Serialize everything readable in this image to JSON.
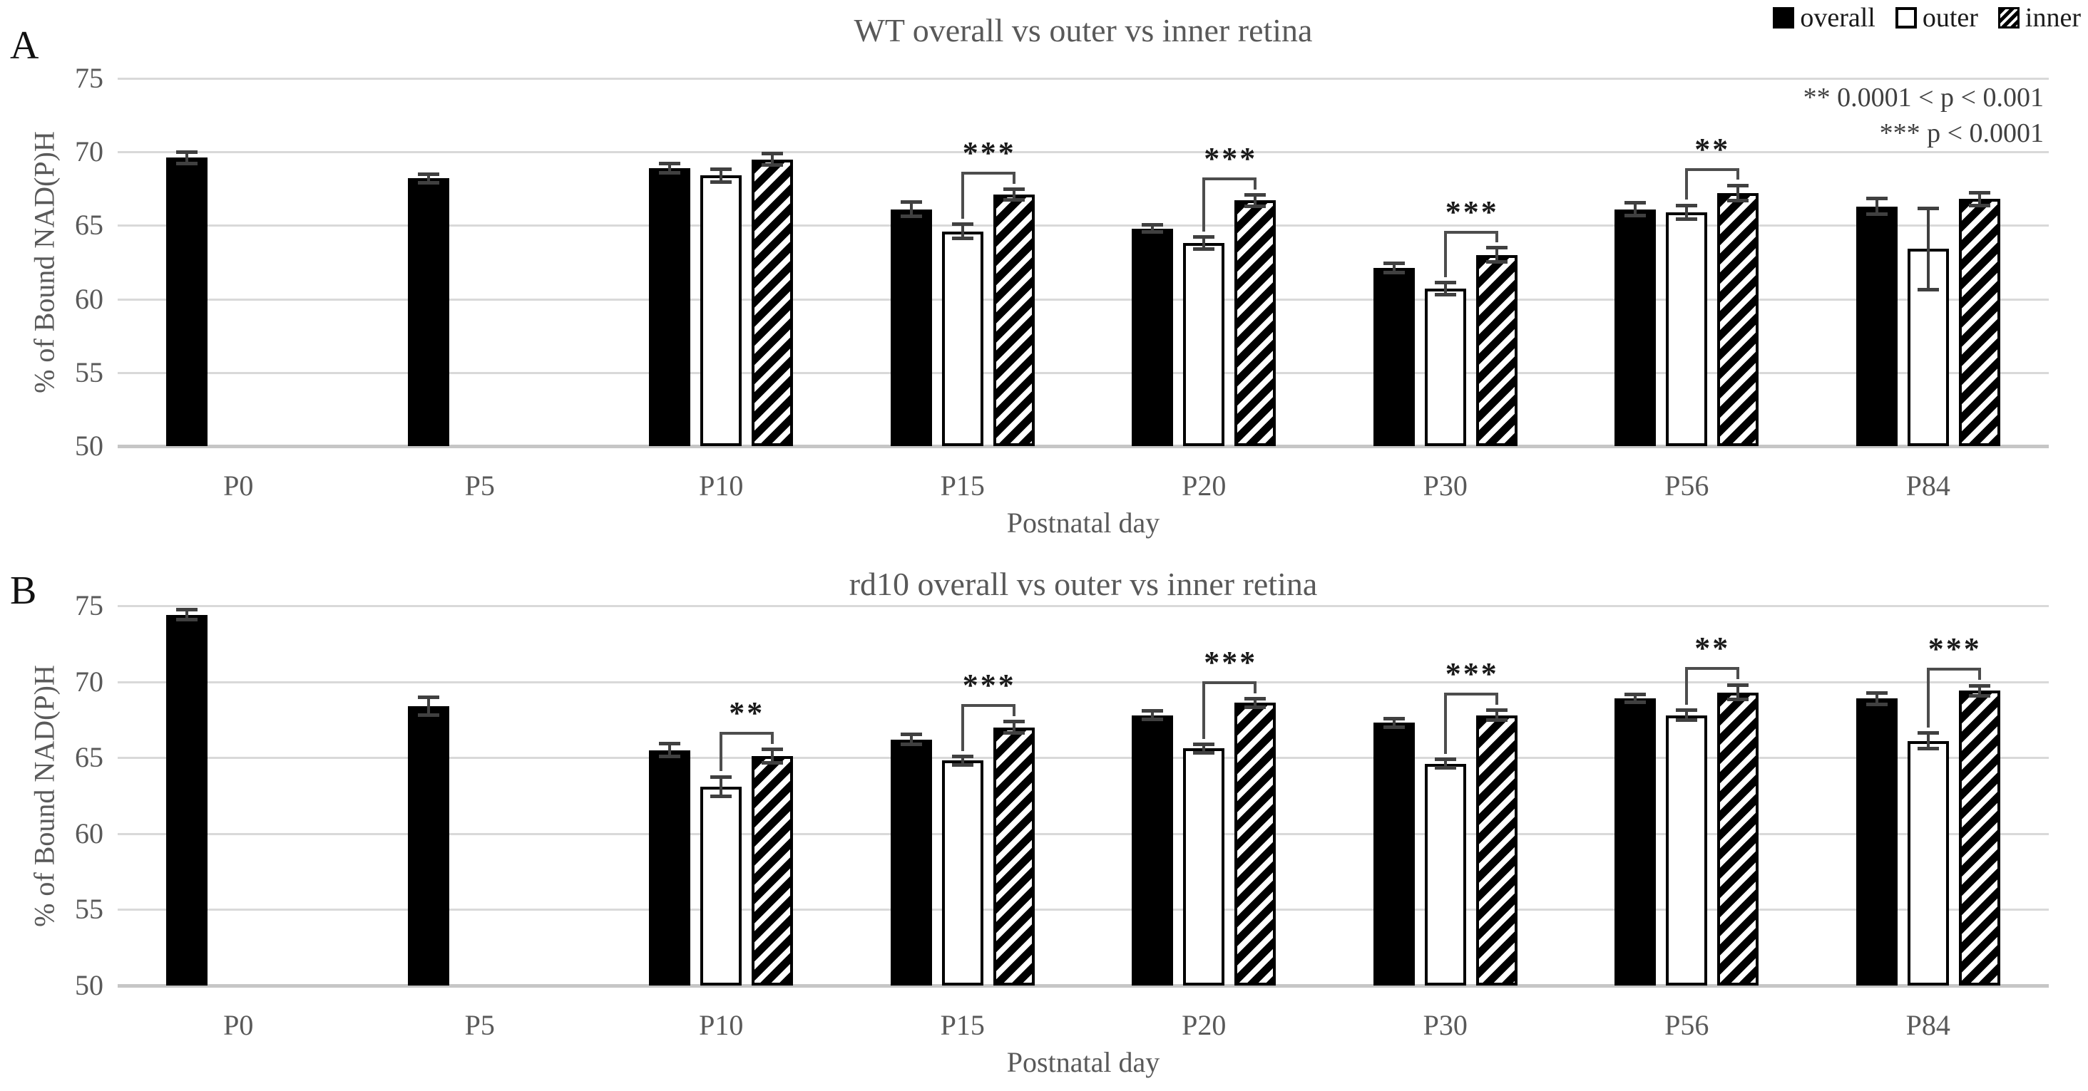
{
  "legend": {
    "items": [
      {
        "label": "overall",
        "swatch": "solid"
      },
      {
        "label": "outer",
        "swatch": "open"
      },
      {
        "label": "inner",
        "swatch": "hatch"
      }
    ]
  },
  "significance_key": {
    "line1": "** 0.0001 < p < 0.001",
    "line2": "*** p < 0.0001"
  },
  "chart_data": [
    {
      "type": "bar",
      "panel_label": "A",
      "title": "WT overall vs outer vs inner retina",
      "xlabel": "Postnatal day",
      "ylabel": "% of Bound NAD(P)H",
      "ylim": [
        50,
        75
      ],
      "yticks": [
        75,
        70,
        65,
        60,
        55,
        50
      ],
      "grid": true,
      "legend_position": "top-right",
      "categories": [
        "P0",
        "P5",
        "P10",
        "P15",
        "P20",
        "P30",
        "P56",
        "P84"
      ],
      "series": [
        {
          "name": "overall",
          "style": "solid",
          "values": [
            69.6,
            68.2,
            68.9,
            66.1,
            64.8,
            62.1,
            66.1,
            66.3
          ],
          "errors": [
            0.4,
            0.3,
            0.35,
            0.5,
            0.25,
            0.35,
            0.45,
            0.55
          ]
        },
        {
          "name": "outer",
          "style": "open",
          "values": [
            null,
            null,
            68.4,
            64.6,
            63.8,
            60.7,
            65.9,
            63.4
          ],
          "errors": [
            null,
            null,
            0.45,
            0.5,
            0.45,
            0.45,
            0.5,
            2.8
          ]
        },
        {
          "name": "inner",
          "style": "hatch",
          "values": [
            null,
            null,
            69.5,
            67.1,
            66.7,
            63.0,
            67.2,
            66.8
          ],
          "errors": [
            null,
            null,
            0.4,
            0.4,
            0.4,
            0.5,
            0.55,
            0.45
          ]
        }
      ],
      "significance": [
        {
          "category": "P15",
          "between": [
            "outer",
            "inner"
          ],
          "label": "***"
        },
        {
          "category": "P20",
          "between": [
            "outer",
            "inner"
          ],
          "label": "***"
        },
        {
          "category": "P30",
          "between": [
            "outer",
            "inner"
          ],
          "label": "***"
        },
        {
          "category": "P56",
          "between": [
            "outer",
            "inner"
          ],
          "label": "**"
        }
      ]
    },
    {
      "type": "bar",
      "panel_label": "B",
      "title": "rd10 overall vs outer vs inner retina",
      "xlabel": "Postnatal day",
      "ylabel": "% of Bound NAD(P)H",
      "ylim": [
        50,
        75
      ],
      "yticks": [
        75,
        70,
        65,
        60,
        55,
        50
      ],
      "grid": true,
      "categories": [
        "P0",
        "P5",
        "P10",
        "P15",
        "P20",
        "P30",
        "P56",
        "P84"
      ],
      "series": [
        {
          "name": "overall",
          "style": "solid",
          "values": [
            74.4,
            68.4,
            65.5,
            66.2,
            67.8,
            67.3,
            68.9,
            68.9
          ],
          "errors": [
            0.35,
            0.6,
            0.45,
            0.35,
            0.3,
            0.3,
            0.3,
            0.4
          ]
        },
        {
          "name": "outer",
          "style": "open",
          "values": [
            null,
            null,
            63.1,
            64.8,
            65.6,
            64.6,
            67.8,
            66.1
          ],
          "errors": [
            null,
            null,
            0.65,
            0.3,
            0.3,
            0.3,
            0.35,
            0.55
          ]
        },
        {
          "name": "inner",
          "style": "hatch",
          "values": [
            null,
            null,
            65.1,
            67.0,
            68.6,
            67.8,
            69.3,
            69.4
          ],
          "errors": [
            null,
            null,
            0.45,
            0.4,
            0.3,
            0.35,
            0.5,
            0.35
          ]
        }
      ],
      "significance": [
        {
          "category": "P10",
          "between": [
            "outer",
            "inner"
          ],
          "label": "**"
        },
        {
          "category": "P15",
          "between": [
            "outer",
            "inner"
          ],
          "label": "***"
        },
        {
          "category": "P20",
          "between": [
            "outer",
            "inner"
          ],
          "label": "***"
        },
        {
          "category": "P30",
          "between": [
            "outer",
            "inner"
          ],
          "label": "***"
        },
        {
          "category": "P56",
          "between": [
            "outer",
            "inner"
          ],
          "label": "**"
        },
        {
          "category": "P84",
          "between": [
            "outer",
            "inner"
          ],
          "label": "***"
        }
      ]
    }
  ]
}
